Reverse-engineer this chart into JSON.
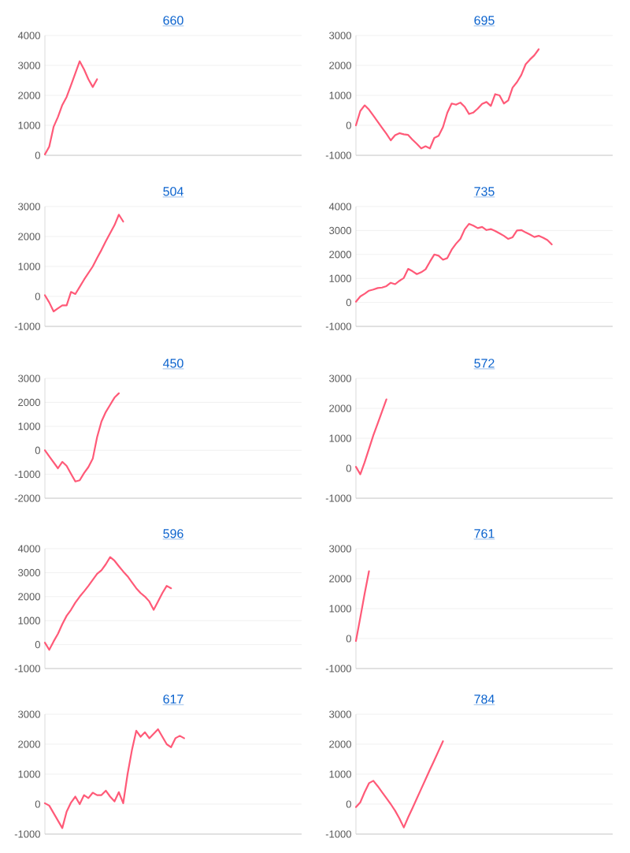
{
  "chart_data": [
    {
      "type": "line",
      "title": "660",
      "grid": "y",
      "tick_labels": "y",
      "ylim": [
        0,
        4000
      ],
      "yticks": [
        0,
        1000,
        2000,
        3000,
        4000
      ],
      "categories": [
        null,
        null,
        null,
        null,
        null,
        null,
        null,
        null,
        null,
        null,
        null,
        null,
        null,
        null,
        null,
        null,
        null,
        null,
        null,
        null,
        null,
        null,
        null,
        null,
        null,
        null,
        null,
        null,
        null,
        null,
        null,
        null,
        null,
        null,
        null,
        null,
        null,
        null,
        null,
        null,
        null,
        null,
        null,
        null,
        null,
        null,
        null,
        null,
        null,
        null,
        null,
        null,
        null,
        null,
        null,
        null,
        null,
        null,
        null,
        null
      ],
      "series": [
        {
          "color": "#ff5a78",
          "values": [
            30,
            290,
            950,
            1280,
            1680,
            1950,
            2340,
            2740,
            3140,
            2870,
            2540,
            2280,
            2540,
            null,
            null,
            null,
            null,
            null,
            null,
            null,
            null,
            null,
            null,
            null,
            null,
            null,
            null,
            null,
            null,
            null,
            null,
            null,
            null,
            null,
            null,
            null,
            null,
            null,
            null,
            null,
            null,
            null,
            null,
            null,
            null,
            null,
            null,
            null,
            null,
            null,
            null,
            null,
            null,
            null,
            null,
            null,
            null,
            null,
            null,
            null
          ]
        }
      ]
    },
    {
      "type": "line",
      "title": "695",
      "grid": "y",
      "tick_labels": "y",
      "ylim": [
        -1000,
        3000
      ],
      "yticks": [
        -1000,
        0,
        1000,
        2000,
        3000
      ],
      "categories": [
        null,
        null,
        null,
        null,
        null,
        null,
        null,
        null,
        null,
        null,
        null,
        null,
        null,
        null,
        null,
        null,
        null,
        null,
        null,
        null,
        null,
        null,
        null,
        null,
        null,
        null,
        null,
        null,
        null,
        null,
        null,
        null,
        null,
        null,
        null,
        null,
        null,
        null,
        null,
        null,
        null,
        null,
        null,
        null,
        null,
        null,
        null,
        null,
        null,
        null,
        null,
        null,
        null,
        null,
        null,
        null,
        null,
        null,
        null,
        null
      ],
      "series": [
        {
          "color": "#ff5a78",
          "values": [
            0,
            480,
            670,
            525,
            325,
            120,
            -80,
            -280,
            -500,
            -330,
            -260,
            -300,
            -320,
            -480,
            -620,
            -770,
            -700,
            -770,
            -420,
            -350,
            -60,
            420,
            730,
            690,
            760,
            620,
            380,
            430,
            560,
            720,
            780,
            650,
            1040,
            1000,
            730,
            830,
            1260,
            1440,
            1680,
            2040,
            2200,
            2340,
            2540,
            null,
            null,
            null,
            null,
            null,
            null,
            null,
            null,
            null,
            null,
            null,
            null,
            null,
            null,
            null,
            null,
            null
          ]
        }
      ]
    },
    {
      "type": "line",
      "title": "504",
      "grid": "y",
      "tick_labels": "y",
      "ylim": [
        -1000,
        3000
      ],
      "yticks": [
        -1000,
        0,
        1000,
        2000,
        3000
      ],
      "categories": [
        null,
        null,
        null,
        null,
        null,
        null,
        null,
        null,
        null,
        null,
        null,
        null,
        null,
        null,
        null,
        null,
        null,
        null,
        null,
        null,
        null,
        null,
        null,
        null,
        null,
        null,
        null,
        null,
        null,
        null,
        null,
        null,
        null,
        null,
        null,
        null,
        null,
        null,
        null,
        null,
        null,
        null,
        null,
        null,
        null,
        null,
        null,
        null,
        null,
        null,
        null,
        null,
        null,
        null,
        null,
        null,
        null,
        null,
        null,
        null
      ],
      "series": [
        {
          "color": "#ff5a78",
          "values": [
            40,
            -200,
            -500,
            -400,
            -300,
            -300,
            150,
            80,
            320,
            560,
            780,
            1000,
            1280,
            1550,
            1840,
            2110,
            2380,
            2730,
            2500,
            null,
            null,
            null,
            null,
            null,
            null,
            null,
            null,
            null,
            null,
            null,
            null,
            null,
            null,
            null,
            null,
            null,
            null,
            null,
            null,
            null,
            null,
            null,
            null,
            null,
            null,
            null,
            null,
            null,
            null,
            null,
            null,
            null,
            null,
            null,
            null,
            null,
            null,
            null,
            null,
            null
          ]
        }
      ]
    },
    {
      "type": "line",
      "title": "735",
      "grid": "y",
      "tick_labels": "y",
      "ylim": [
        -1000,
        4000
      ],
      "yticks": [
        -1000,
        0,
        1000,
        2000,
        3000,
        4000
      ],
      "categories": [
        null,
        null,
        null,
        null,
        null,
        null,
        null,
        null,
        null,
        null,
        null,
        null,
        null,
        null,
        null,
        null,
        null,
        null,
        null,
        null,
        null,
        null,
        null,
        null,
        null,
        null,
        null,
        null,
        null,
        null,
        null,
        null,
        null,
        null,
        null,
        null,
        null,
        null,
        null,
        null,
        null,
        null,
        null,
        null,
        null,
        null,
        null,
        null,
        null,
        null,
        null,
        null,
        null,
        null,
        null,
        null,
        null,
        null,
        null,
        null
      ],
      "series": [
        {
          "color": "#ff5a78",
          "values": [
            30,
            250,
            360,
            490,
            540,
            600,
            620,
            680,
            820,
            760,
            900,
            1020,
            1400,
            1300,
            1180,
            1260,
            1380,
            1700,
            2000,
            1950,
            1780,
            1850,
            2200,
            2450,
            2650,
            3050,
            3280,
            3200,
            3100,
            3150,
            3020,
            3060,
            2980,
            2880,
            2780,
            2650,
            2720,
            3000,
            3020,
            2920,
            2830,
            2730,
            2780,
            2700,
            2600,
            2420,
            null,
            null,
            null,
            null,
            null,
            null,
            null,
            null,
            null,
            null,
            null,
            null,
            null,
            null
          ]
        }
      ]
    },
    {
      "type": "line",
      "title": "450",
      "grid": "y",
      "tick_labels": "y",
      "ylim": [
        -2000,
        3000
      ],
      "yticks": [
        -2000,
        -1000,
        0,
        1000,
        2000,
        3000
      ],
      "categories": [
        null,
        null,
        null,
        null,
        null,
        null,
        null,
        null,
        null,
        null,
        null,
        null,
        null,
        null,
        null,
        null,
        null,
        null,
        null,
        null,
        null,
        null,
        null,
        null,
        null,
        null,
        null,
        null,
        null,
        null,
        null,
        null,
        null,
        null,
        null,
        null,
        null,
        null,
        null,
        null,
        null,
        null,
        null,
        null,
        null,
        null,
        null,
        null,
        null,
        null,
        null,
        null,
        null,
        null,
        null,
        null,
        null,
        null,
        null,
        null
      ],
      "series": [
        {
          "color": "#ff5a78",
          "values": [
            0,
            -250,
            -500,
            -750,
            -480,
            -650,
            -980,
            -1300,
            -1250,
            -950,
            -700,
            -350,
            550,
            1200,
            1600,
            1900,
            2200,
            2380,
            null,
            null,
            null,
            null,
            null,
            null,
            null,
            null,
            null,
            null,
            null,
            null,
            null,
            null,
            null,
            null,
            null,
            null,
            null,
            null,
            null,
            null,
            null,
            null,
            null,
            null,
            null,
            null,
            null,
            null,
            null,
            null,
            null,
            null,
            null,
            null,
            null,
            null,
            null,
            null,
            null,
            null
          ]
        }
      ]
    },
    {
      "type": "line",
      "title": "572",
      "grid": "y",
      "tick_labels": "y",
      "ylim": [
        -1000,
        3000
      ],
      "yticks": [
        -1000,
        0,
        1000,
        2000,
        3000
      ],
      "categories": [
        null,
        null,
        null,
        null,
        null,
        null,
        null,
        null,
        null,
        null,
        null,
        null,
        null,
        null,
        null,
        null,
        null,
        null,
        null,
        null,
        null,
        null,
        null,
        null,
        null,
        null,
        null,
        null,
        null,
        null,
        null,
        null,
        null,
        null,
        null,
        null,
        null,
        null,
        null,
        null,
        null,
        null,
        null,
        null,
        null,
        null,
        null,
        null,
        null,
        null,
        null,
        null,
        null,
        null,
        null,
        null,
        null,
        null,
        null,
        null
      ],
      "series": [
        {
          "color": "#ff5a78",
          "values": [
            50,
            -200,
            200,
            650,
            1100,
            1500,
            1900,
            2300,
            null,
            null,
            null,
            null,
            null,
            null,
            null,
            null,
            null,
            null,
            null,
            null,
            null,
            null,
            null,
            null,
            null,
            null,
            null,
            null,
            null,
            null,
            null,
            null,
            null,
            null,
            null,
            null,
            null,
            null,
            null,
            null,
            null,
            null,
            null,
            null,
            null,
            null,
            null,
            null,
            null,
            null,
            null,
            null,
            null,
            null,
            null,
            null,
            null,
            null,
            null,
            null
          ]
        }
      ]
    },
    {
      "type": "line",
      "title": "596",
      "grid": "y",
      "tick_labels": "y",
      "ylim": [
        -1000,
        4000
      ],
      "yticks": [
        -1000,
        0,
        1000,
        2000,
        3000,
        4000
      ],
      "categories": [
        null,
        null,
        null,
        null,
        null,
        null,
        null,
        null,
        null,
        null,
        null,
        null,
        null,
        null,
        null,
        null,
        null,
        null,
        null,
        null,
        null,
        null,
        null,
        null,
        null,
        null,
        null,
        null,
        null,
        null,
        null,
        null,
        null,
        null,
        null,
        null,
        null,
        null,
        null,
        null,
        null,
        null,
        null,
        null,
        null,
        null,
        null,
        null,
        null,
        null,
        null,
        null,
        null,
        null,
        null,
        null,
        null,
        null,
        null,
        null
      ],
      "series": [
        {
          "color": "#ff5a78",
          "values": [
            80,
            -220,
            130,
            450,
            850,
            1200,
            1450,
            1750,
            2000,
            2220,
            2450,
            2700,
            2950,
            3100,
            3350,
            3650,
            3500,
            3270,
            3050,
            2850,
            2600,
            2350,
            2150,
            2000,
            1800,
            1450,
            1800,
            2150,
            2450,
            2350,
            null,
            null,
            null,
            null,
            null,
            null,
            null,
            null,
            null,
            null,
            null,
            null,
            null,
            null,
            null,
            null,
            null,
            null,
            null,
            null,
            null,
            null,
            null,
            null,
            null,
            null,
            null,
            null,
            null,
            null
          ]
        }
      ]
    },
    {
      "type": "line",
      "title": "761",
      "grid": "y",
      "tick_labels": "y",
      "ylim": [
        -1000,
        3000
      ],
      "yticks": [
        -1000,
        0,
        1000,
        2000,
        3000
      ],
      "categories": [
        null,
        null,
        null,
        null,
        null,
        null,
        null,
        null,
        null,
        null,
        null,
        null,
        null,
        null,
        null,
        null,
        null,
        null,
        null,
        null,
        null,
        null,
        null,
        null,
        null,
        null,
        null,
        null,
        null,
        null,
        null,
        null,
        null,
        null,
        null,
        null,
        null,
        null,
        null,
        null,
        null,
        null,
        null,
        null,
        null,
        null,
        null,
        null,
        null,
        null,
        null,
        null,
        null,
        null,
        null,
        null,
        null,
        null,
        null,
        null
      ],
      "series": [
        {
          "color": "#ff5a78",
          "values": [
            -80,
            700,
            1500,
            2250,
            null,
            null,
            null,
            null,
            null,
            null,
            null,
            null,
            null,
            null,
            null,
            null,
            null,
            null,
            null,
            null,
            null,
            null,
            null,
            null,
            null,
            null,
            null,
            null,
            null,
            null,
            null,
            null,
            null,
            null,
            null,
            null,
            null,
            null,
            null,
            null,
            null,
            null,
            null,
            null,
            null,
            null,
            null,
            null,
            null,
            null,
            null,
            null,
            null,
            null,
            null,
            null,
            null,
            null,
            null,
            null
          ]
        }
      ]
    },
    {
      "type": "line",
      "title": "617",
      "grid": "y",
      "tick_labels": "y",
      "ylim": [
        -1000,
        3000
      ],
      "yticks": [
        -1000,
        0,
        1000,
        2000,
        3000
      ],
      "categories": [
        null,
        null,
        null,
        null,
        null,
        null,
        null,
        null,
        null,
        null,
        null,
        null,
        null,
        null,
        null,
        null,
        null,
        null,
        null,
        null,
        null,
        null,
        null,
        null,
        null,
        null,
        null,
        null,
        null,
        null,
        null,
        null,
        null,
        null,
        null,
        null,
        null,
        null,
        null,
        null,
        null,
        null,
        null,
        null,
        null,
        null,
        null,
        null,
        null,
        null,
        null,
        null,
        null,
        null,
        null,
        null,
        null,
        null,
        null,
        null
      ],
      "series": [
        {
          "color": "#ff5a78",
          "values": [
            30,
            -50,
            -300,
            -550,
            -800,
            -250,
            50,
            250,
            0,
            300,
            200,
            380,
            300,
            300,
            450,
            250,
            90,
            400,
            30,
            1000,
            1800,
            2450,
            2250,
            2400,
            2200,
            2350,
            2500,
            2250,
            2000,
            1900,
            2200,
            2280,
            2200,
            null,
            null,
            null,
            null,
            null,
            null,
            null,
            null,
            null,
            null,
            null,
            null,
            null,
            null,
            null,
            null,
            null,
            null,
            null,
            null,
            null,
            null,
            null,
            null,
            null,
            null,
            null
          ]
        }
      ]
    },
    {
      "type": "line",
      "title": "784",
      "grid": "y",
      "tick_labels": "y",
      "ylim": [
        -1000,
        3000
      ],
      "yticks": [
        -1000,
        0,
        1000,
        2000,
        3000
      ],
      "categories": [
        null,
        null,
        null,
        null,
        null,
        null,
        null,
        null,
        null,
        null,
        null,
        null,
        null,
        null,
        null,
        null,
        null,
        null,
        null,
        null,
        null,
        null,
        null,
        null,
        null,
        null,
        null,
        null,
        null,
        null,
        null,
        null,
        null,
        null,
        null,
        null,
        null,
        null,
        null,
        null,
        null,
        null,
        null,
        null,
        null,
        null,
        null,
        null,
        null,
        null,
        null,
        null,
        null,
        null,
        null,
        null,
        null,
        null,
        null,
        null
      ],
      "series": [
        {
          "color": "#ff5a78",
          "values": [
            -100,
            60,
            400,
            700,
            780,
            600,
            400,
            200,
            0,
            -220,
            -480,
            -780,
            -440,
            -130,
            190,
            510,
            830,
            1150,
            1460,
            1780,
            2100,
            null,
            null,
            null,
            null,
            null,
            null,
            null,
            null,
            null,
            null,
            null,
            null,
            null,
            null,
            null,
            null,
            null,
            null,
            null,
            null,
            null,
            null,
            null,
            null,
            null,
            null,
            null,
            null,
            null,
            null,
            null,
            null,
            null,
            null,
            null,
            null,
            null,
            null,
            null
          ]
        }
      ]
    }
  ]
}
